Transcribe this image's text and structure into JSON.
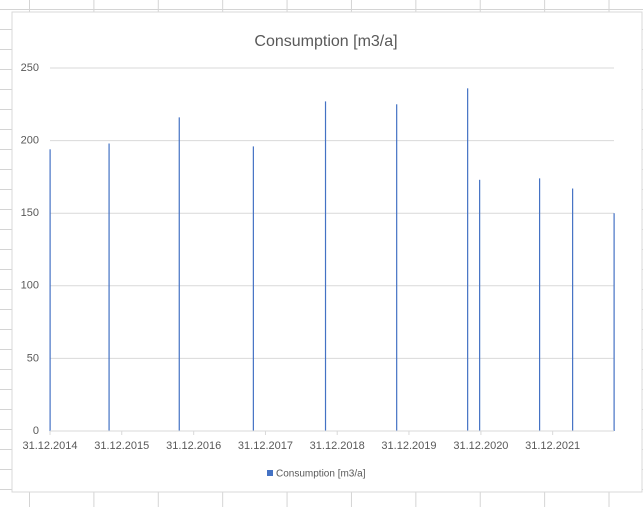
{
  "chart_data": {
    "type": "bar",
    "title": "Consumption [m3/a]",
    "x": [
      "2014-12-31",
      "2015-10-27",
      "2016-10-18",
      "2017-10-30",
      "2018-11-01",
      "2019-10-29",
      "2020-10-24",
      "2020-12-24",
      "2021-10-25",
      "2022-04-11",
      "2022-11-08"
    ],
    "series": [
      {
        "name": "Consumption [m3/a]",
        "color": "#4472c4",
        "values": [
          194,
          198,
          216,
          196,
          227,
          225,
          236,
          173,
          174,
          167,
          150
        ]
      }
    ],
    "xlim": [
      "2014-12-31",
      "2022-11-08"
    ],
    "xticks": [
      {
        "value": "2014-12-31",
        "label": "31.12.2014"
      },
      {
        "value": "2015-12-31",
        "label": "31.12.2015"
      },
      {
        "value": "2016-12-31",
        "label": "31.12.2016"
      },
      {
        "value": "2017-12-31",
        "label": "31.12.2017"
      },
      {
        "value": "2018-12-31",
        "label": "31.12.2018"
      },
      {
        "value": "2019-12-31",
        "label": "31.12.2019"
      },
      {
        "value": "2020-12-31",
        "label": "31.12.2020"
      },
      {
        "value": "2021-12-31",
        "label": "31.12.2021"
      }
    ],
    "ylim": [
      0,
      250
    ],
    "yticks": [
      0,
      50,
      100,
      150,
      200,
      250
    ],
    "grid": true,
    "legend": "bottom"
  }
}
